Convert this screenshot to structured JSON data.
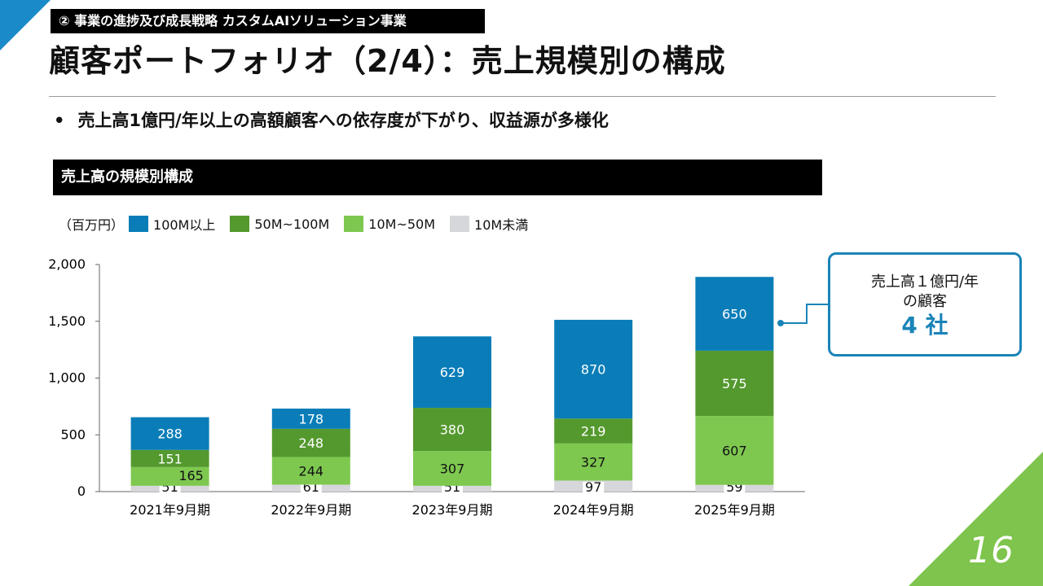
{
  "section_tag": "② 事業の進捗及び成長戦略 カスタムAIソリューション事業",
  "title": "顧客ポートフォリオ（2/4）：売上規模別の構成",
  "bullet": "売上高1億円/年以上の高額顧客への依存度が下がり、収益源が多様化",
  "bullet_dot": "•",
  "chart_header": "売上高の規模別構成",
  "page_number": "16",
  "colors": {
    "blue": "#0a7db8",
    "dark_green": "#54992e",
    "light_green": "#7ec850",
    "gray": "#d6d7da",
    "corner_blue": "#1a8ac8",
    "corner_green": "#7ec44d"
  },
  "callout": {
    "line1": "売上高１億円/年",
    "line2": "の顧客",
    "line3": "4 社"
  },
  "chart_data": {
    "type": "bar",
    "stacked": true,
    "unit_label": "（百万円）",
    "categories": [
      "2021年9月期",
      "2022年9月期",
      "2023年9月期",
      "2024年9月期",
      "2025年9月期"
    ],
    "series": [
      {
        "name": "10M未満",
        "color": "#d6d7da",
        "values": [
          51,
          61,
          51,
          97,
          59
        ]
      },
      {
        "name": "10M~50M",
        "color": "#7ec850",
        "values": [
          165,
          244,
          307,
          327,
          607
        ]
      },
      {
        "name": "50M~100M",
        "color": "#54992e",
        "values": [
          151,
          248,
          380,
          219,
          575
        ]
      },
      {
        "name": "100M以上",
        "color": "#0a7db8",
        "values": [
          288,
          178,
          629,
          870,
          650
        ]
      }
    ],
    "legend_order": [
      "100M以上",
      "50M~100M",
      "10M~50M",
      "10M未満"
    ],
    "ylim": [
      0,
      2000
    ],
    "yticks": [
      0,
      500,
      1000,
      1500,
      2000
    ],
    "ytick_labels": [
      "0",
      "500",
      "1,000",
      "1,500",
      "2,000"
    ],
    "title": "",
    "xlabel": "",
    "ylabel": ""
  }
}
